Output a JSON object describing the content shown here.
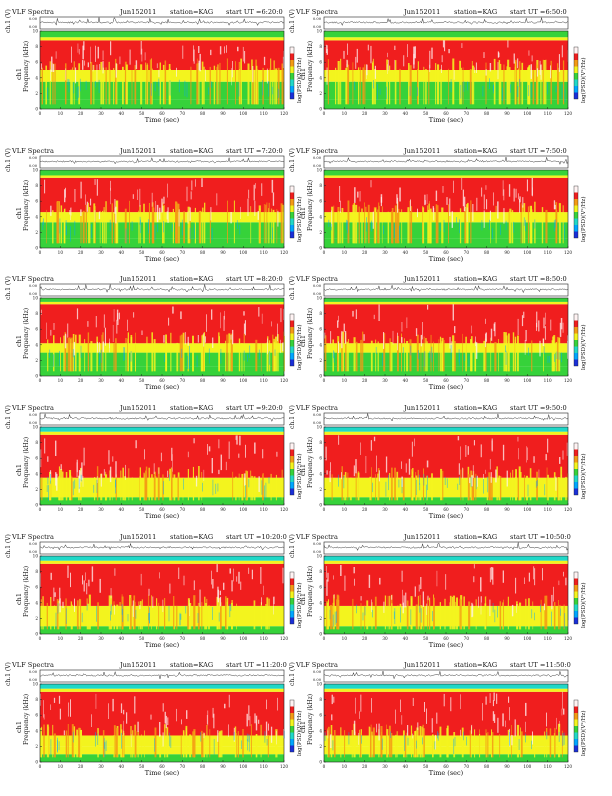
{
  "page": {
    "header_prefix": "VLF Spectra",
    "station_label": "station=KAG",
    "start_label": "start  UT",
    "ch_label": "ch.1 (V)",
    "freq_label_top": "ch1",
    "freq_label": "Frequency (kHz)",
    "x_label": "Time (sec)",
    "colorbar_label": "log(PSD)(V²/Hz)"
  },
  "colors": {
    "deep": "#1a2fd8",
    "blue": "#00a6ff",
    "cyan": "#20d8c8",
    "green": "#36d23a",
    "yellow": "#f3f41e",
    "orange": "#f39a14",
    "red": "#f01e1e",
    "white": "#fff3f3",
    "trace": "#333333"
  },
  "chart_data": [
    {
      "type": "heatmap",
      "date": "Jun152011",
      "start_time": "=6:20:0",
      "xlim": [
        0,
        120
      ],
      "x_ticks": [
        0,
        10,
        20,
        30,
        40,
        50,
        60,
        70,
        80,
        90,
        100,
        110,
        120
      ],
      "ch_ticks": [
        "0.00",
        "0.00"
      ],
      "ch_range": [
        -0.02,
        0.02
      ],
      "freq_ticks": [
        0,
        2,
        4,
        6,
        8,
        10
      ],
      "ylim_khz": [
        0,
        10
      ],
      "band_khz": [
        [
          0,
          1.2,
          "green"
        ],
        [
          1.2,
          3.5,
          "green"
        ],
        [
          3.5,
          5,
          "yellow"
        ],
        [
          5,
          8.8,
          "red"
        ],
        [
          8.8,
          9.2,
          "yellow"
        ],
        [
          9.2,
          10,
          "green"
        ]
      ]
    },
    {
      "type": "heatmap",
      "date": "Jun152011",
      "start_time": "=6:50:0",
      "xlim": [
        0,
        120
      ],
      "x_ticks": [
        0,
        10,
        20,
        30,
        40,
        50,
        60,
        70,
        80,
        90,
        100,
        110,
        120
      ],
      "ch_ticks": [
        "0.00",
        "0.00"
      ],
      "ch_range": [
        -0.02,
        0.02
      ],
      "freq_ticks": [
        0,
        2,
        4,
        6,
        8,
        10
      ],
      "ylim_khz": [
        0,
        10
      ],
      "band_khz": [
        [
          0,
          1.2,
          "green"
        ],
        [
          1.2,
          3.5,
          "green"
        ],
        [
          3.5,
          5,
          "yellow"
        ],
        [
          5,
          8.8,
          "red"
        ],
        [
          8.8,
          9.2,
          "yellow"
        ],
        [
          9.2,
          10,
          "green"
        ]
      ]
    },
    {
      "type": "heatmap",
      "date": "Jun152011",
      "start_time": "=7:20:0",
      "xlim": [
        0,
        120
      ],
      "x_ticks": [
        0,
        10,
        20,
        30,
        40,
        50,
        60,
        70,
        80,
        90,
        100,
        110,
        120
      ],
      "ch_ticks": [
        "0.00",
        "0.00"
      ],
      "ch_range": [
        -0.02,
        0.02
      ],
      "freq_ticks": [
        0,
        2,
        4,
        6,
        8,
        10
      ],
      "ylim_khz": [
        0,
        10
      ],
      "band_khz": [
        [
          0,
          1.2,
          "green"
        ],
        [
          1.2,
          3.3,
          "green"
        ],
        [
          3.3,
          4.6,
          "yellow"
        ],
        [
          4.6,
          9.0,
          "red"
        ],
        [
          9.0,
          9.3,
          "yellow"
        ],
        [
          9.3,
          10,
          "green"
        ]
      ]
    },
    {
      "type": "heatmap",
      "date": "Jun152011",
      "start_time": "=7:50:0",
      "xlim": [
        0,
        120
      ],
      "x_ticks": [
        0,
        10,
        20,
        30,
        40,
        50,
        60,
        70,
        80,
        90,
        100,
        110,
        120
      ],
      "ch_ticks": [
        "0.00",
        "0.00"
      ],
      "ch_range": [
        -0.02,
        0.02
      ],
      "freq_ticks": [
        0,
        2,
        4,
        6,
        8,
        10
      ],
      "ylim_khz": [
        0,
        10
      ],
      "band_khz": [
        [
          0,
          1.2,
          "green"
        ],
        [
          1.2,
          3.3,
          "green"
        ],
        [
          3.3,
          4.6,
          "yellow"
        ],
        [
          4.6,
          9.0,
          "red"
        ],
        [
          9.0,
          9.3,
          "yellow"
        ],
        [
          9.3,
          10,
          "green"
        ]
      ]
    },
    {
      "type": "heatmap",
      "date": "Jun152011",
      "start_time": "=8:20:0",
      "xlim": [
        0,
        120
      ],
      "x_ticks": [
        0,
        10,
        20,
        30,
        40,
        50,
        60,
        70,
        80,
        90,
        100,
        110,
        120
      ],
      "ch_ticks": [
        "0.00",
        "0.00"
      ],
      "ch_range": [
        -0.02,
        0.02
      ],
      "freq_ticks": [
        0,
        2,
        4,
        6,
        8,
        10
      ],
      "ylim_khz": [
        0,
        10
      ],
      "band_khz": [
        [
          0,
          1.2,
          "green"
        ],
        [
          1.2,
          3.0,
          "green"
        ],
        [
          3.0,
          4.2,
          "yellow"
        ],
        [
          4.2,
          9.2,
          "red"
        ],
        [
          9.2,
          9.5,
          "yellow"
        ],
        [
          9.5,
          10,
          "green"
        ]
      ]
    },
    {
      "type": "heatmap",
      "date": "Jun152011",
      "start_time": "=8:50:0",
      "xlim": [
        0,
        120
      ],
      "x_ticks": [
        0,
        10,
        20,
        30,
        40,
        50,
        60,
        70,
        80,
        90,
        100,
        110,
        120
      ],
      "ch_ticks": [
        "0.00",
        "0.00"
      ],
      "ch_range": [
        -0.02,
        0.02
      ],
      "freq_ticks": [
        0,
        2,
        4,
        6,
        8,
        10
      ],
      "ylim_khz": [
        0,
        10
      ],
      "band_khz": [
        [
          0,
          1.2,
          "green"
        ],
        [
          1.2,
          3.0,
          "green"
        ],
        [
          3.0,
          4.2,
          "yellow"
        ],
        [
          4.2,
          9.2,
          "red"
        ],
        [
          9.2,
          9.5,
          "yellow"
        ],
        [
          9.5,
          10,
          "green"
        ]
      ]
    },
    {
      "type": "heatmap",
      "date": "Jun152011",
      "start_time": "=9:20:0",
      "xlim": [
        0,
        120
      ],
      "x_ticks": [
        0,
        10,
        20,
        30,
        40,
        50,
        60,
        70,
        80,
        90,
        100,
        110,
        120
      ],
      "ch_ticks": [
        "0.00",
        "0.00"
      ],
      "ch_range": [
        -0.02,
        0.02
      ],
      "freq_ticks": [
        0,
        2,
        4,
        6,
        8,
        10
      ],
      "ylim_khz": [
        0,
        10
      ],
      "band_khz": [
        [
          0,
          1.0,
          "green"
        ],
        [
          1.0,
          2.5,
          "yellow"
        ],
        [
          2.5,
          3.5,
          "yellow"
        ],
        [
          3.5,
          9.0,
          "red"
        ],
        [
          9.0,
          9.4,
          "yellow"
        ],
        [
          9.4,
          10,
          "cyan"
        ]
      ]
    },
    {
      "type": "heatmap",
      "date": "Jun152011",
      "start_time": "=9:50:0",
      "xlim": [
        0,
        120
      ],
      "x_ticks": [
        0,
        10,
        20,
        30,
        40,
        50,
        60,
        70,
        80,
        90,
        100,
        110,
        120
      ],
      "ch_ticks": [
        "0.00",
        "0.00"
      ],
      "ch_range": [
        -0.02,
        0.02
      ],
      "freq_ticks": [
        0,
        2,
        4,
        6,
        8,
        10
      ],
      "ylim_khz": [
        0,
        10
      ],
      "band_khz": [
        [
          0,
          1.0,
          "green"
        ],
        [
          1.0,
          2.5,
          "yellow"
        ],
        [
          2.5,
          3.5,
          "yellow"
        ],
        [
          3.5,
          9.0,
          "red"
        ],
        [
          9.0,
          9.4,
          "yellow"
        ],
        [
          9.4,
          10,
          "cyan"
        ]
      ]
    },
    {
      "type": "heatmap",
      "date": "Jun152011",
      "start_time": "=10:20:0",
      "xlim": [
        0,
        120
      ],
      "x_ticks": [
        0,
        10,
        20,
        30,
        40,
        50,
        60,
        70,
        80,
        90,
        100,
        110,
        120
      ],
      "ch_ticks": [
        "0.00",
        "0.00"
      ],
      "ch_range": [
        -0.02,
        0.02
      ],
      "freq_ticks": [
        0,
        2,
        4,
        6,
        8,
        10
      ],
      "ylim_khz": [
        0,
        10
      ],
      "band_khz": [
        [
          0,
          1.0,
          "green"
        ],
        [
          1.0,
          2.5,
          "yellow"
        ],
        [
          2.5,
          3.6,
          "yellow"
        ],
        [
          3.6,
          9.0,
          "red"
        ],
        [
          9.0,
          9.4,
          "yellow"
        ],
        [
          9.4,
          10,
          "cyan"
        ]
      ]
    },
    {
      "type": "heatmap",
      "date": "Jun152011",
      "start_time": "=10:50:0",
      "xlim": [
        0,
        120
      ],
      "x_ticks": [
        0,
        10,
        20,
        30,
        40,
        50,
        60,
        70,
        80,
        90,
        100,
        110,
        120
      ],
      "ch_ticks": [
        "0.00",
        "0.00"
      ],
      "ch_range": [
        -0.02,
        0.02
      ],
      "freq_ticks": [
        0,
        2,
        4,
        6,
        8,
        10
      ],
      "ylim_khz": [
        0,
        10
      ],
      "band_khz": [
        [
          0,
          1.0,
          "green"
        ],
        [
          1.0,
          2.5,
          "yellow"
        ],
        [
          2.5,
          3.6,
          "yellow"
        ],
        [
          3.6,
          9.0,
          "red"
        ],
        [
          9.0,
          9.4,
          "yellow"
        ],
        [
          9.4,
          10,
          "cyan"
        ]
      ]
    },
    {
      "type": "heatmap",
      "date": "Jun152011",
      "start_time": "=11:20:0",
      "xlim": [
        0,
        120
      ],
      "x_ticks": [
        0,
        10,
        20,
        30,
        40,
        50,
        60,
        70,
        80,
        90,
        100,
        110,
        120
      ],
      "ch_ticks": [
        "0.00",
        "0.00"
      ],
      "ch_range": [
        -0.02,
        0.02
      ],
      "freq_ticks": [
        0,
        2,
        4,
        6,
        8,
        10
      ],
      "ylim_khz": [
        0,
        10
      ],
      "band_khz": [
        [
          0,
          1.0,
          "green"
        ],
        [
          1.0,
          2.0,
          "yellow"
        ],
        [
          2.0,
          3.4,
          "yellow"
        ],
        [
          3.4,
          9.0,
          "red"
        ],
        [
          9.0,
          9.4,
          "yellow"
        ],
        [
          9.4,
          10,
          "cyan"
        ]
      ]
    },
    {
      "type": "heatmap",
      "date": "Jun152011",
      "start_time": "=11:50:0",
      "xlim": [
        0,
        120
      ],
      "x_ticks": [
        0,
        10,
        20,
        30,
        40,
        50,
        60,
        70,
        80,
        90,
        100,
        110,
        120
      ],
      "ch_ticks": [
        "0.00",
        "0.00"
      ],
      "ch_range": [
        -0.02,
        0.02
      ],
      "freq_ticks": [
        0,
        2,
        4,
        6,
        8,
        10
      ],
      "ylim_khz": [
        0,
        10
      ],
      "band_khz": [
        [
          0,
          1.0,
          "green"
        ],
        [
          1.0,
          2.0,
          "yellow"
        ],
        [
          2.0,
          3.4,
          "yellow"
        ],
        [
          3.4,
          9.0,
          "red"
        ],
        [
          9.0,
          9.4,
          "yellow"
        ],
        [
          9.4,
          10,
          "cyan"
        ]
      ]
    }
  ]
}
